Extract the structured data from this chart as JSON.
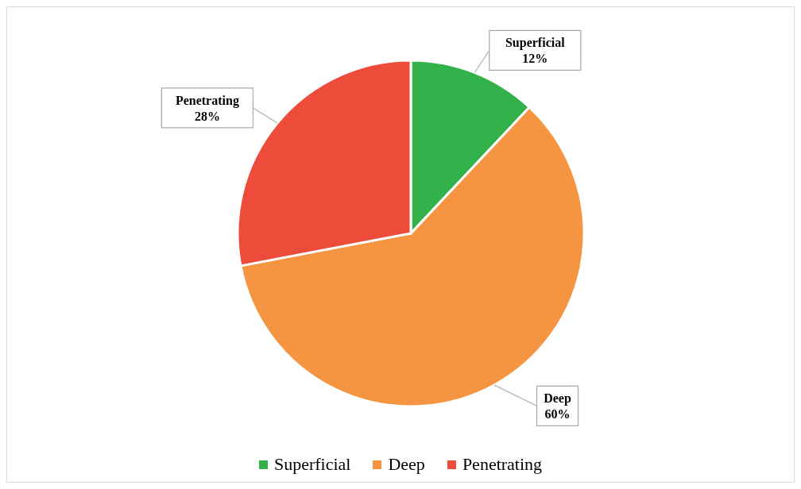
{
  "chart_data": {
    "type": "pie",
    "categories": [
      "Superficial",
      "Deep",
      "Penetrating"
    ],
    "values": [
      12,
      60,
      28
    ],
    "value_labels": [
      "12%",
      "60%",
      "28%"
    ],
    "colors": [
      "#33b24c",
      "#f59541",
      "#ee4c3a"
    ],
    "legend": "bottom"
  }
}
